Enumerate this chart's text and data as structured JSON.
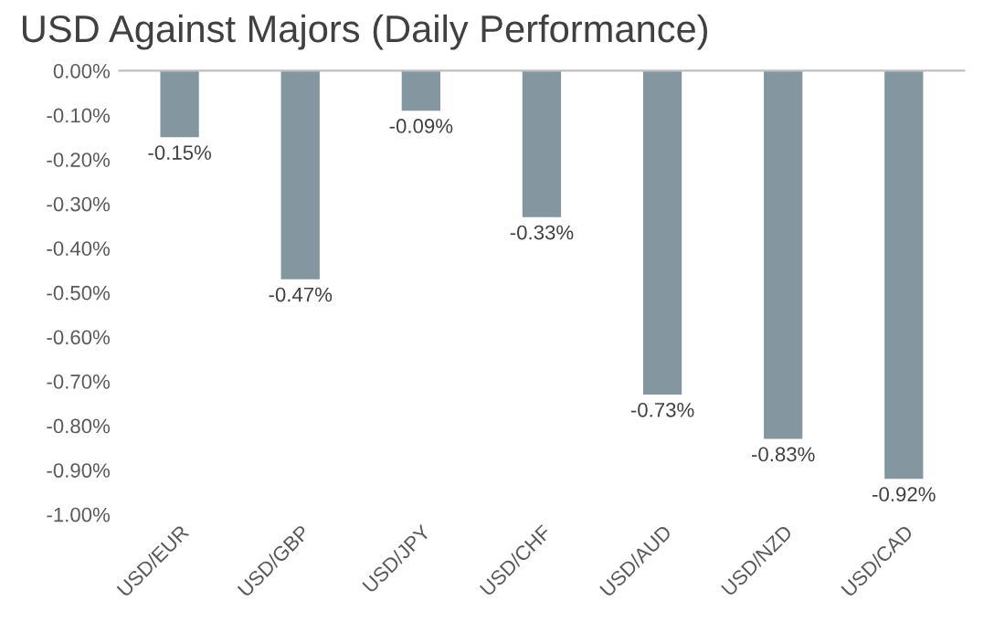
{
  "chart_data": {
    "type": "bar",
    "title": "USD Against Majors (Daily Performance)",
    "categories": [
      "USD/EUR",
      "USD/GBP",
      "USD/JPY",
      "USD/CHF",
      "USD/AUD",
      "USD/NZD",
      "USD/CAD"
    ],
    "values": [
      -0.15,
      -0.47,
      -0.09,
      -0.33,
      -0.73,
      -0.83,
      -0.92
    ],
    "value_labels": [
      "-0.15%",
      "-0.47%",
      "-0.09%",
      "-0.33%",
      "-0.73%",
      "-0.83%",
      "-0.92%"
    ],
    "color": "#8497a0",
    "ylim": [
      -1,
      0
    ],
    "yticks": [
      {
        "value": 0,
        "label": "0.00%"
      },
      {
        "value": -0.1,
        "label": "-0.10%"
      },
      {
        "value": -0.2,
        "label": "-0.20%"
      },
      {
        "value": -0.3,
        "label": "-0.30%"
      },
      {
        "value": -0.4,
        "label": "-0.40%"
      },
      {
        "value": -0.5,
        "label": "-0.50%"
      },
      {
        "value": -0.6,
        "label": "-0.60%"
      },
      {
        "value": -0.7,
        "label": "-0.70%"
      },
      {
        "value": -0.8,
        "label": "-0.80%"
      },
      {
        "value": -0.9,
        "label": "-0.90%"
      },
      {
        "value": -1,
        "label": "-1.00%"
      }
    ],
    "grid": false
  }
}
